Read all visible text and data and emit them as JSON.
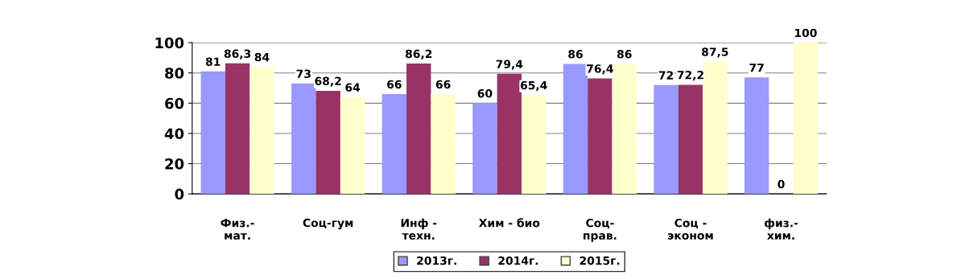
{
  "chart_data": {
    "type": "bar",
    "categories": [
      "Физ.-\nмат.",
      "Соц-гум",
      "Инф -\nтехн.",
      "Хим - био",
      "Соц-\nправ.",
      "Соц -\nэконом",
      "физ.-\nхим."
    ],
    "series": [
      {
        "name": "2013г.",
        "color": "#9999ff",
        "values": [
          81,
          73,
          66,
          60,
          86,
          72,
          77
        ],
        "value_labels": [
          "81",
          "73",
          "66",
          "60",
          "86",
          "72",
          "77"
        ]
      },
      {
        "name": "2014г.",
        "color": "#993366",
        "values": [
          86.3,
          68.2,
          86.2,
          79.4,
          76.4,
          72.2,
          0
        ],
        "value_labels": [
          "86,3",
          "68,2",
          "86,2",
          "79,4",
          "76,4",
          "72,2",
          "0"
        ]
      },
      {
        "name": "2015г.",
        "color": "#ffffcc",
        "values": [
          84,
          64,
          66,
          65.4,
          86,
          87.5,
          100
        ],
        "value_labels": [
          "84",
          "64",
          "66",
          "65,4",
          "86",
          "87,5",
          "100"
        ]
      }
    ],
    "ylim": [
      0,
      100
    ],
    "yticks": [
      0,
      20,
      40,
      60,
      80,
      100
    ],
    "grid": "y",
    "legend": "bottom"
  }
}
